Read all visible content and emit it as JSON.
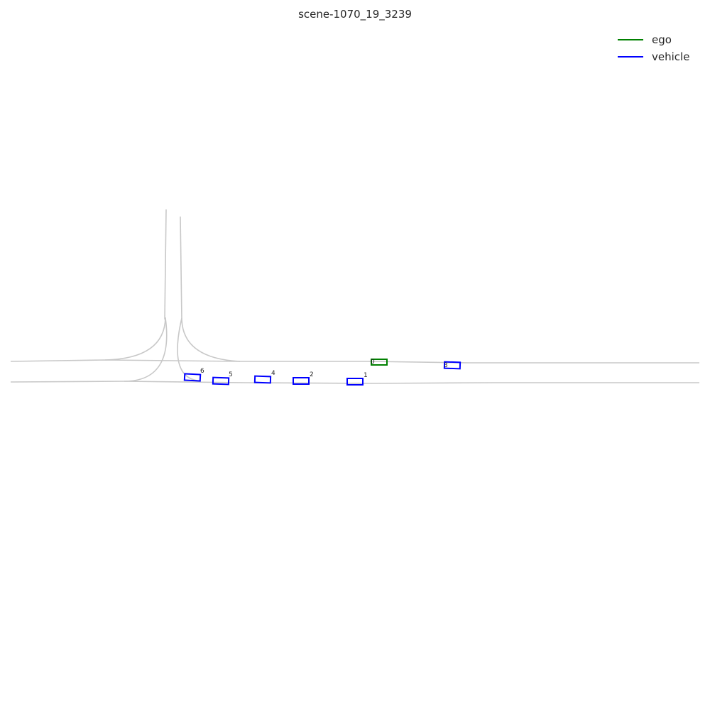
{
  "title": "scene-1070_19_3239",
  "colors": {
    "ego": "#008000",
    "vehicle": "#0000ff",
    "lane": "#c8c8c8"
  },
  "legend": [
    {
      "label": "ego",
      "color": "#008000"
    },
    {
      "label": "vehicle",
      "color": "#0000ff"
    }
  ],
  "agents": [
    {
      "id": "0",
      "type": "ego"
    },
    {
      "id": "1",
      "type": "vehicle"
    },
    {
      "id": "2",
      "type": "vehicle"
    },
    {
      "id": "3",
      "type": "vehicle"
    },
    {
      "id": "4",
      "type": "vehicle"
    },
    {
      "id": "5",
      "type": "vehicle"
    },
    {
      "id": "6",
      "type": "vehicle"
    }
  ]
}
